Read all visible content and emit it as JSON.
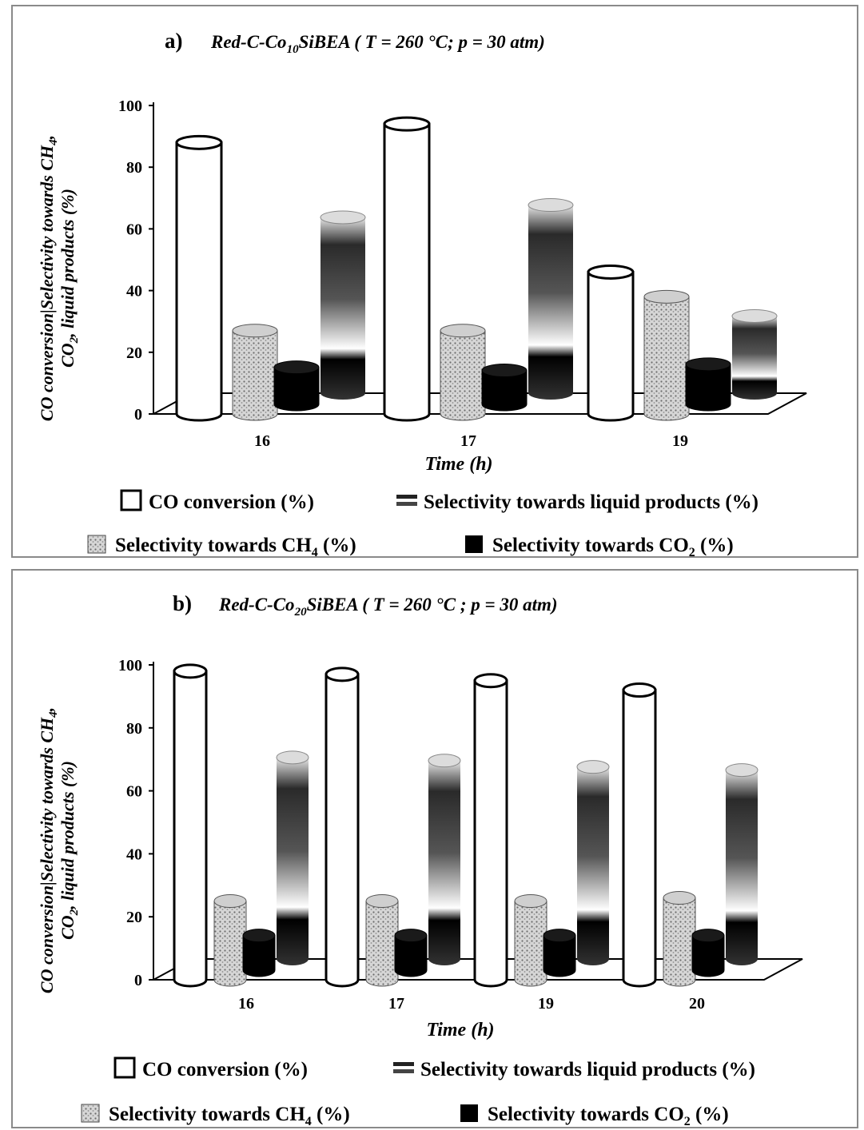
{
  "chart_data": [
    {
      "type": "bar",
      "panel_letter": "a)",
      "title_main": "Red-C-Co",
      "title_sub": "10",
      "title_rest": "SiBEA  ( T = 260 °C; p = 30 atm)",
      "xlabel": "Time (h)",
      "ylabel_line1": "CO conversion|Selectivity towards CH",
      "ylabel_line1_sub": "4",
      "ylabel_line1_end": ",",
      "ylabel_line2": "CO",
      "ylabel_line2_sub": "2",
      "ylabel_line2_end": ", liquid products (%)",
      "ylim": [
        0,
        100
      ],
      "yticks": [
        "0",
        "20",
        "40",
        "60",
        "80",
        "100"
      ],
      "categories": [
        "16",
        "17",
        "19"
      ],
      "series": [
        {
          "name": "CO conversion (%)",
          "values": [
            88,
            94,
            46
          ]
        },
        {
          "name": "Selectivity towards CH4 (%)",
          "values": [
            27,
            27,
            38
          ]
        },
        {
          "name": "Selectivity towards CO2 (%)",
          "values": [
            12,
            11,
            13
          ]
        },
        {
          "name": "Selectivity towards liquid products (%)",
          "values": [
            57,
            61,
            25
          ]
        }
      ]
    },
    {
      "type": "bar",
      "panel_letter": "b)",
      "title_main": "Red-C-Co",
      "title_sub": "20",
      "title_rest": "SiBEA  ( T = 260 °C ; p = 30 atm)",
      "xlabel": "Time (h)",
      "ylabel_line1": "CO conversion|Selectivity towards CH",
      "ylabel_line1_sub": "4",
      "ylabel_line1_end": ",",
      "ylabel_line2": "CO",
      "ylabel_line2_sub": "2",
      "ylabel_line2_end": ", liquid products (%)",
      "ylim": [
        0,
        100
      ],
      "yticks": [
        "0",
        "20",
        "40",
        "60",
        "80",
        "100"
      ],
      "categories": [
        "16",
        "17",
        "19",
        "20"
      ],
      "series": [
        {
          "name": "CO conversion (%)",
          "values": [
            98,
            97,
            95,
            92
          ]
        },
        {
          "name": "Selectivity towards CH4 (%)",
          "values": [
            25,
            25,
            25,
            26
          ]
        },
        {
          "name": "Selectivity towards CO2 (%)",
          "values": [
            11,
            11,
            11,
            11
          ]
        },
        {
          "name": "Selectivity towards liquid products (%)",
          "values": [
            64,
            63,
            61,
            60
          ]
        }
      ]
    }
  ],
  "legend": {
    "co_conversion": "CO conversion (%)",
    "liquid": "Selectivity towards liquid products (%)",
    "ch4_main": "Selectivity towards CH",
    "ch4_sub": "4",
    "ch4_end": " (%)",
    "co2_main": "Selectivity towards CO",
    "co2_sub": "2",
    "co2_end": " (%)"
  },
  "colors": {
    "co_conversion": "#ffffff",
    "ch4": "#b8b8b8",
    "co2": "#000000",
    "liquid": "#3a3a3a"
  }
}
